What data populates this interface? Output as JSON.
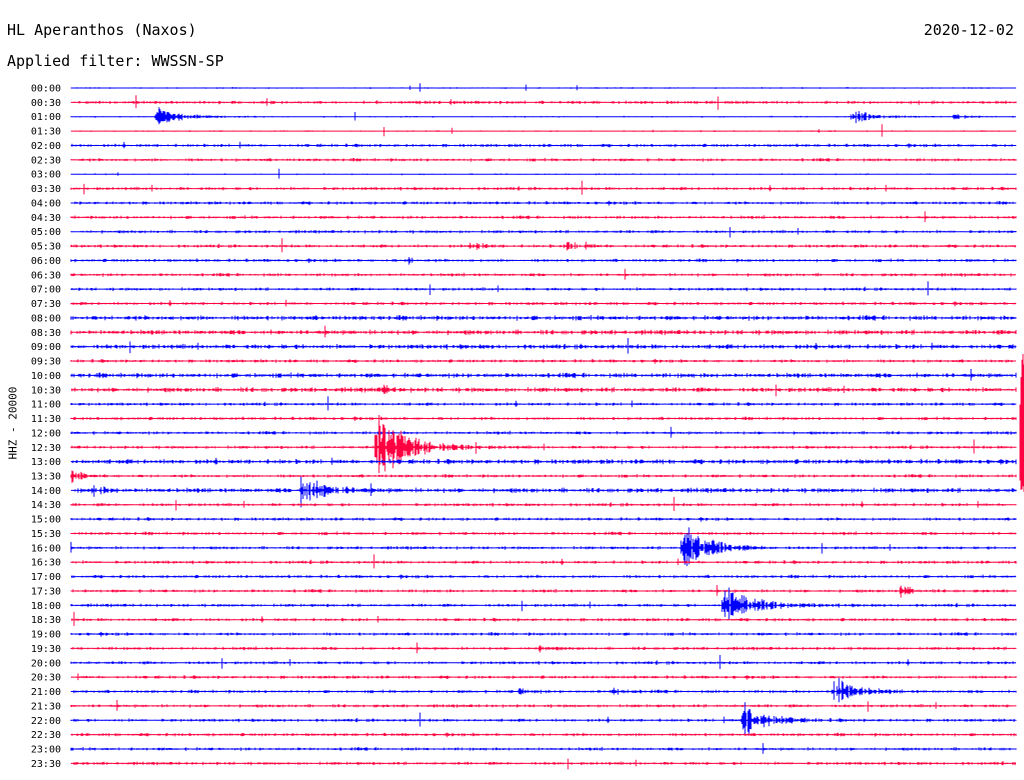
{
  "header": {
    "station": "HL Aperanthos (Naxos)",
    "filter": "Applied filter: WWSSN-SP",
    "date": "2020-12-02",
    "channel": "HHZ - 20000"
  },
  "colors": {
    "blue": "#0000ff",
    "red": "#ff0040"
  },
  "chart_data": {
    "type": "line",
    "title": "HL Aperanthos (Naxos)",
    "subtitle": "Applied filter: WWSSN-SP",
    "ylabel": "HHZ - 20000",
    "row_labels": [
      "00:00",
      "00:30",
      "01:00",
      "01:30",
      "02:00",
      "02:30",
      "03:00",
      "03:30",
      "04:00",
      "04:30",
      "05:00",
      "05:30",
      "06:00",
      "06:30",
      "07:00",
      "07:30",
      "08:00",
      "08:30",
      "09:00",
      "09:30",
      "10:00",
      "10:30",
      "11:00",
      "11:30",
      "12:00",
      "12:30",
      "13:00",
      "13:30",
      "14:00",
      "14:30",
      "15:00",
      "15:30",
      "16:00",
      "16:30",
      "17:00",
      "17:30",
      "18:00",
      "18:30",
      "19:00",
      "19:30",
      "20:00",
      "20:30",
      "21:00",
      "21:30",
      "22:00",
      "22:30",
      "23:00",
      "23:30"
    ],
    "row_minutes": 30,
    "color_cycle": [
      "blue",
      "red"
    ],
    "noise_level": [
      1,
      2,
      1,
      1,
      2,
      2,
      1,
      2,
      2,
      2,
      2,
      2,
      2,
      2,
      2,
      2,
      3,
      3,
      3,
      2,
      3,
      3,
      2,
      2,
      2,
      2,
      3,
      2,
      3,
      2,
      2,
      2,
      2,
      2,
      2,
      2,
      2,
      2,
      2,
      2,
      2,
      2,
      2,
      2,
      2,
      2,
      2,
      2
    ],
    "events": [
      {
        "row": 2,
        "minute": 2.7,
        "amp": 10,
        "dur": 1.2
      },
      {
        "row": 2,
        "minute": 24.8,
        "amp": 8,
        "dur": 1.0
      },
      {
        "row": 2,
        "minute": 28.0,
        "amp": 3,
        "dur": 0.7
      },
      {
        "row": 11,
        "minute": 12.8,
        "amp": 6,
        "dur": 0.4
      },
      {
        "row": 11,
        "minute": 15.7,
        "amp": 4,
        "dur": 0.9
      },
      {
        "row": 12,
        "minute": 10.7,
        "amp": 5,
        "dur": 0.2
      },
      {
        "row": 21,
        "minute": 9.9,
        "amp": 4,
        "dur": 0.4
      },
      {
        "row": 25,
        "minute": 9.7,
        "amp": 38,
        "dur": 1.6
      },
      {
        "row": 26,
        "minute": 34.2,
        "amp": 8,
        "dur": 0.5
      },
      {
        "row": 27,
        "minute": 0.0,
        "amp": 6,
        "dur": 0.6
      },
      {
        "row": 28,
        "minute": 7.3,
        "amp": 16,
        "dur": 1.2
      },
      {
        "row": 28,
        "minute": 0.7,
        "amp": 5,
        "dur": 0.6
      },
      {
        "row": 32,
        "minute": 19.4,
        "amp": 30,
        "dur": 1.2
      },
      {
        "row": 35,
        "minute": 26.3,
        "amp": 7,
        "dur": 0.5
      },
      {
        "row": 36,
        "minute": 20.7,
        "amp": 22,
        "dur": 1.5
      },
      {
        "row": 39,
        "minute": 14.8,
        "amp": 3,
        "dur": 0.6
      },
      {
        "row": 42,
        "minute": 24.2,
        "amp": 16,
        "dur": 1.1
      },
      {
        "row": 42,
        "minute": 17.2,
        "amp": 4,
        "dur": 0.6
      },
      {
        "row": 42,
        "minute": 14.2,
        "amp": 3,
        "dur": 0.6
      },
      {
        "row": 44,
        "minute": 21.3,
        "amp": 20,
        "dur": 1.2
      }
    ],
    "main_event": {
      "row": 26,
      "minute": 30.7,
      "amp": 60,
      "spans_rows": [
        0,
        45
      ]
    }
  }
}
